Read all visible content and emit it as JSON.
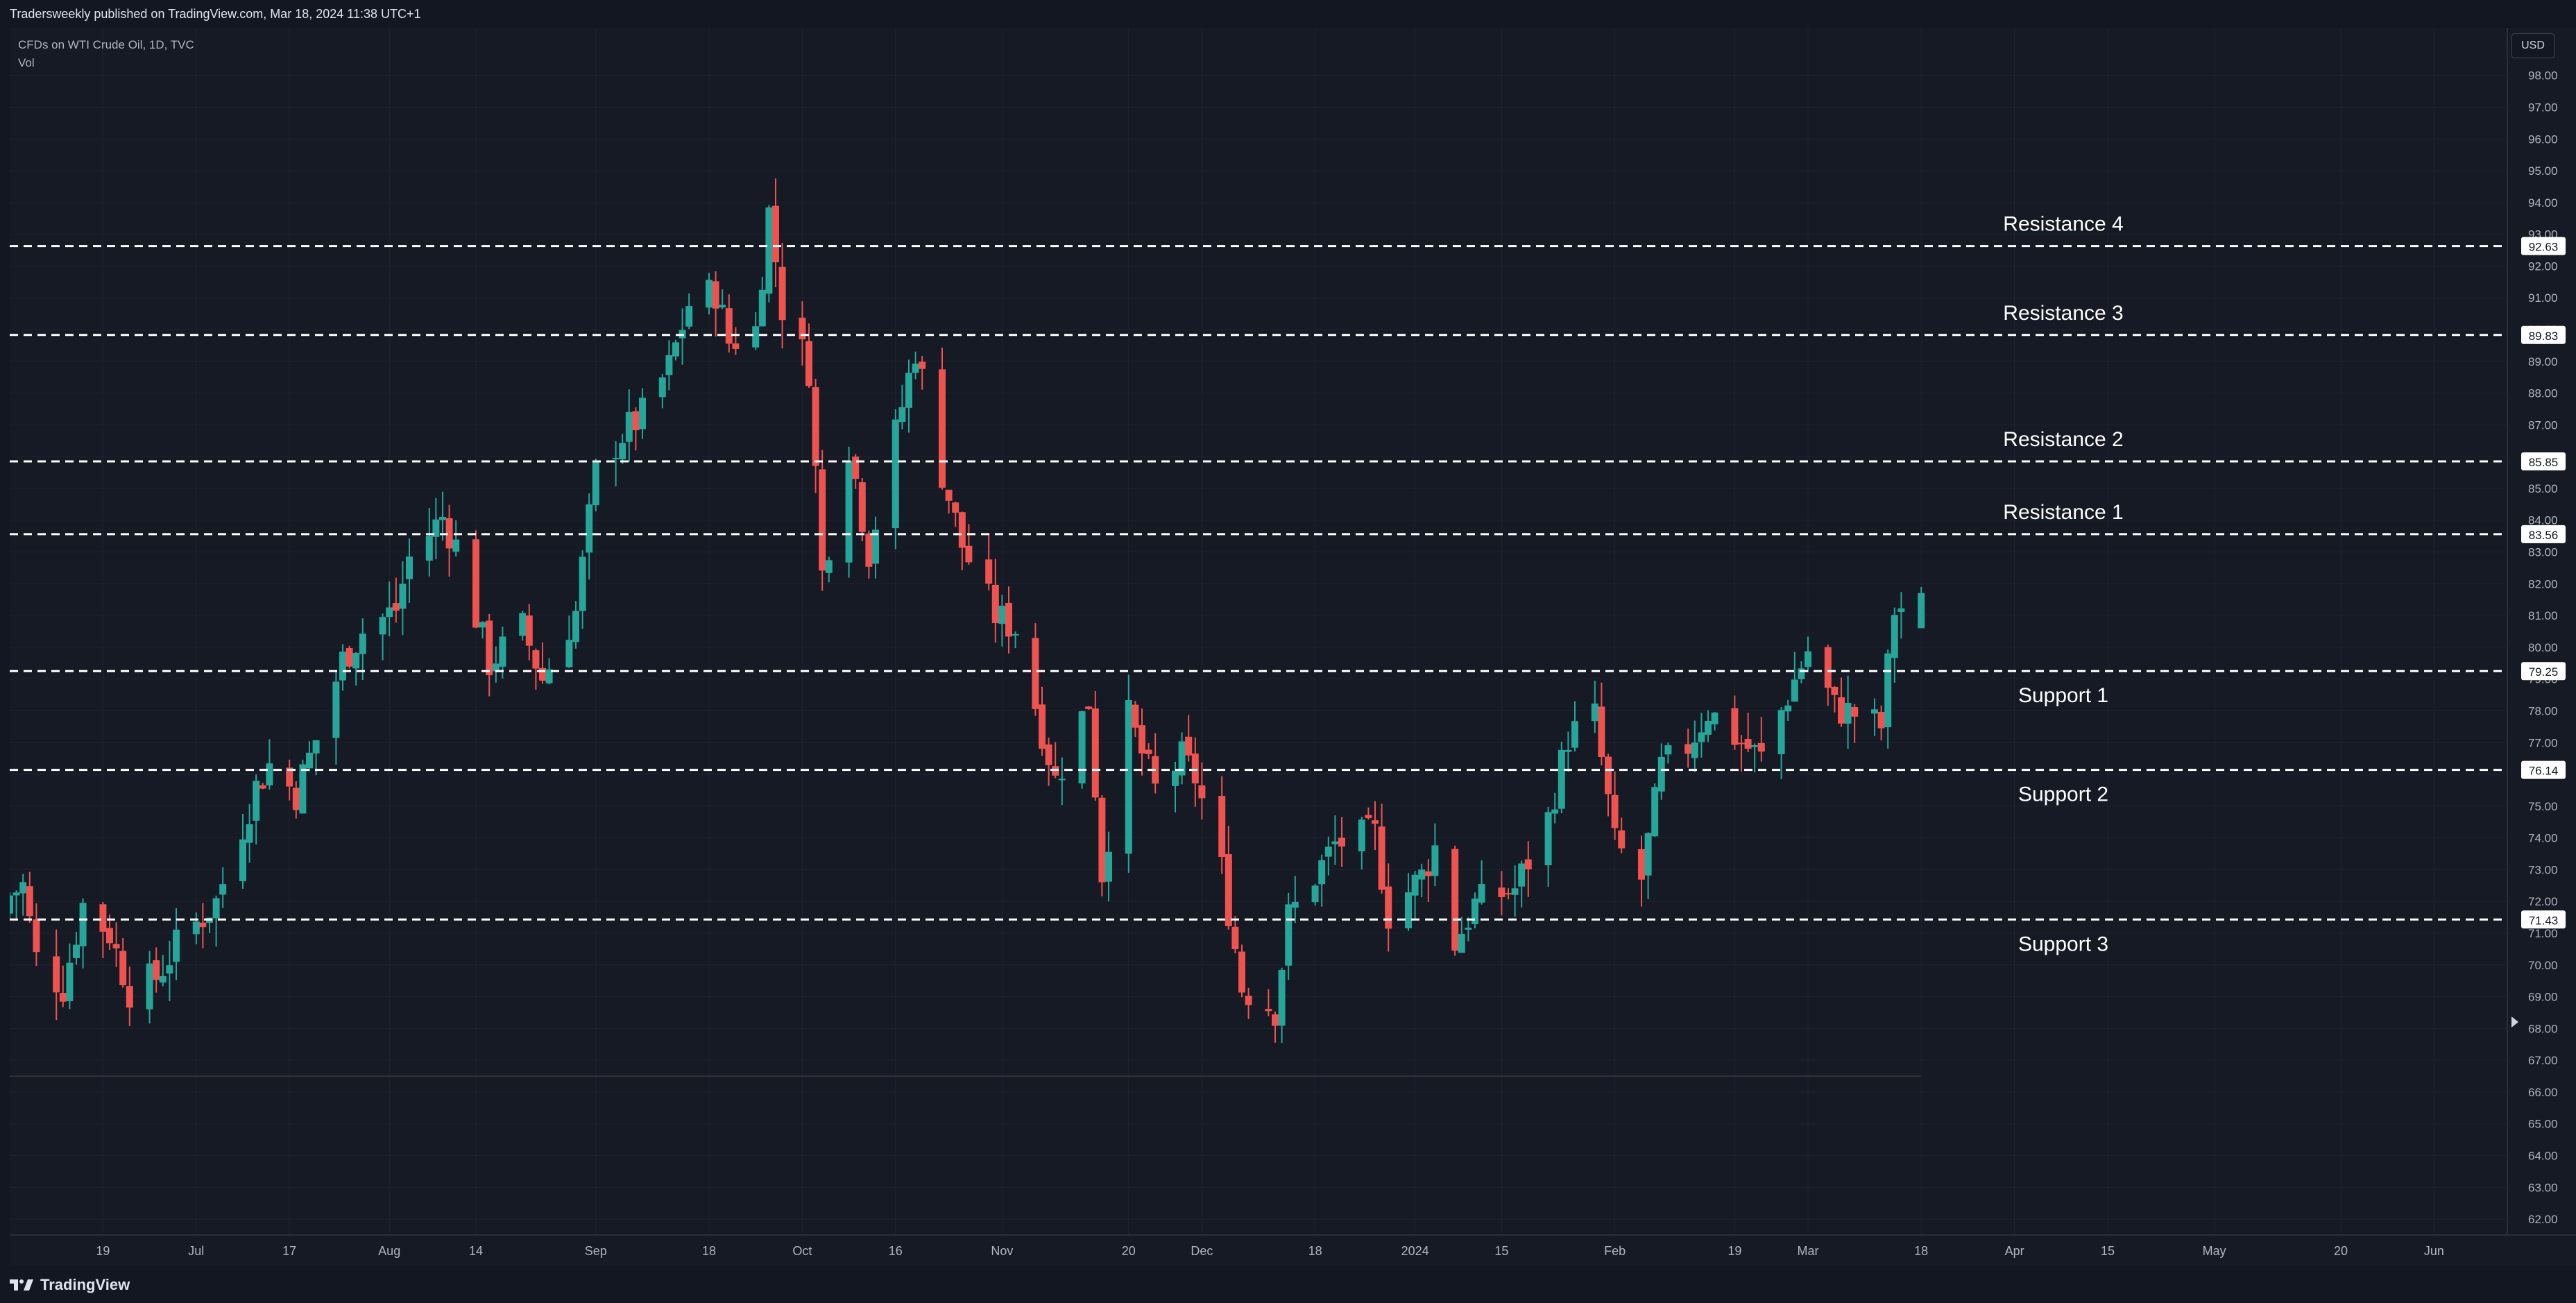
{
  "header": {
    "published": "Tradersweekly published on TradingView.com, Mar 18, 2024 11:38 UTC+1"
  },
  "legend": {
    "symbol": "CFDs on WTI Crude Oil, 1D, TVC",
    "indicator": "Vol"
  },
  "currency_button": "USD",
  "footer": {
    "brand": "TradingView"
  },
  "colors": {
    "background": "#161a25",
    "up": "#26a69a",
    "down": "#ef5350",
    "grid": "#1f2330",
    "level_line": "#ffffff",
    "axis_text": "#b2b5be"
  },
  "chart_data": {
    "type": "candlestick",
    "ylim": [
      61.5,
      99.5
    ],
    "y_ticks": [
      62,
      63,
      64,
      65,
      66,
      67,
      68,
      69,
      70,
      71,
      72,
      73,
      74,
      75,
      76,
      77,
      78,
      79,
      80,
      81,
      82,
      83,
      84,
      85,
      86,
      87,
      88,
      89,
      90,
      91,
      92,
      93,
      94,
      95,
      96,
      97,
      98
    ],
    "x_ticks": [
      {
        "label": "19",
        "date": "2023-06-19"
      },
      {
        "label": "Jul",
        "date": "2023-07-03"
      },
      {
        "label": "17",
        "date": "2023-07-17"
      },
      {
        "label": "Aug",
        "date": "2023-08-01"
      },
      {
        "label": "14",
        "date": "2023-08-14"
      },
      {
        "label": "Sep",
        "date": "2023-09-01"
      },
      {
        "label": "18",
        "date": "2023-09-18"
      },
      {
        "label": "Oct",
        "date": "2023-10-02"
      },
      {
        "label": "16",
        "date": "2023-10-16"
      },
      {
        "label": "Nov",
        "date": "2023-11-01"
      },
      {
        "label": "20",
        "date": "2023-11-20"
      },
      {
        "label": "Dec",
        "date": "2023-12-01"
      },
      {
        "label": "18",
        "date": "2023-12-18"
      },
      {
        "label": "2024",
        "date": "2024-01-02"
      },
      {
        "label": "15",
        "date": "2024-01-15"
      },
      {
        "label": "Feb",
        "date": "2024-02-01"
      },
      {
        "label": "19",
        "date": "2024-02-19"
      },
      {
        "label": "Mar",
        "date": "2024-03-01"
      },
      {
        "label": "18",
        "date": "2024-03-18"
      },
      {
        "label": "Apr",
        "date": "2024-04-01"
      },
      {
        "label": "15",
        "date": "2024-04-15"
      },
      {
        "label": "May",
        "date": "2024-05-01"
      },
      {
        "label": "20",
        "date": "2024-05-20"
      },
      {
        "label": "Jun",
        "date": "2024-06-03"
      }
    ],
    "date_range": [
      "2023-06-05",
      "2024-06-14"
    ],
    "levels": [
      {
        "label": "Resistance 4",
        "value": 92.63,
        "tag": "92.63"
      },
      {
        "label": "Resistance 3",
        "value": 89.83,
        "tag": "89.83"
      },
      {
        "label": "Resistance 2",
        "value": 85.85,
        "tag": "85.85"
      },
      {
        "label": "Resistance 1",
        "value": 83.56,
        "tag": "83.56"
      },
      {
        "label": "Support 1",
        "value": 79.25,
        "tag": "79.25"
      },
      {
        "label": "Support 2",
        "value": 76.14,
        "tag": "76.14"
      },
      {
        "label": "Support 3",
        "value": 71.43,
        "tag": "71.43"
      }
    ],
    "close_path": [
      {
        "date": "2023-06-05",
        "close": 72.2
      },
      {
        "date": "2023-06-07",
        "close": 72.5
      },
      {
        "date": "2023-06-09",
        "close": 70.2
      },
      {
        "date": "2023-06-13",
        "close": 69.3
      },
      {
        "date": "2023-06-16",
        "close": 71.9
      },
      {
        "date": "2023-06-20",
        "close": 71.0
      },
      {
        "date": "2023-06-23",
        "close": 69.2
      },
      {
        "date": "2023-06-27",
        "close": 69.6
      },
      {
        "date": "2023-06-30",
        "close": 70.6
      },
      {
        "date": "2023-07-06",
        "close": 72.0
      },
      {
        "date": "2023-07-12",
        "close": 75.6
      },
      {
        "date": "2023-07-14",
        "close": 76.3
      },
      {
        "date": "2023-07-18",
        "close": 75.4
      },
      {
        "date": "2023-07-21",
        "close": 77.1
      },
      {
        "date": "2023-07-25",
        "close": 79.6
      },
      {
        "date": "2023-07-28",
        "close": 80.5
      },
      {
        "date": "2023-08-02",
        "close": 81.2
      },
      {
        "date": "2023-08-04",
        "close": 82.8
      },
      {
        "date": "2023-08-09",
        "close": 84.1
      },
      {
        "date": "2023-08-11",
        "close": 83.2
      },
      {
        "date": "2023-08-16",
        "close": 79.5
      },
      {
        "date": "2023-08-21",
        "close": 80.6
      },
      {
        "date": "2023-08-24",
        "close": 79.0
      },
      {
        "date": "2023-08-29",
        "close": 81.1
      },
      {
        "date": "2023-09-01",
        "close": 85.5
      },
      {
        "date": "2023-09-05",
        "close": 86.7
      },
      {
        "date": "2023-09-08",
        "close": 87.3
      },
      {
        "date": "2023-09-12",
        "close": 88.8
      },
      {
        "date": "2023-09-15",
        "close": 90.8
      },
      {
        "date": "2023-09-19",
        "close": 91.2
      },
      {
        "date": "2023-09-21",
        "close": 89.6
      },
      {
        "date": "2023-09-25",
        "close": 90.0
      },
      {
        "date": "2023-09-27",
        "close": 93.7
      },
      {
        "date": "2023-09-29",
        "close": 90.7
      },
      {
        "date": "2023-10-03",
        "close": 88.8
      },
      {
        "date": "2023-10-05",
        "close": 82.3
      },
      {
        "date": "2023-10-09",
        "close": 86.4
      },
      {
        "date": "2023-10-12",
        "close": 83.0
      },
      {
        "date": "2023-10-16",
        "close": 86.7
      },
      {
        "date": "2023-10-19",
        "close": 89.4
      },
      {
        "date": "2023-10-23",
        "close": 85.5
      },
      {
        "date": "2023-10-26",
        "close": 83.2
      },
      {
        "date": "2023-10-31",
        "close": 81.0
      },
      {
        "date": "2023-11-03",
        "close": 80.6
      },
      {
        "date": "2023-11-07",
        "close": 77.4
      },
      {
        "date": "2023-11-09",
        "close": 75.8
      },
      {
        "date": "2023-11-14",
        "close": 78.3
      },
      {
        "date": "2023-11-16",
        "close": 72.9
      },
      {
        "date": "2023-11-20",
        "close": 77.8
      },
      {
        "date": "2023-11-24",
        "close": 75.5
      },
      {
        "date": "2023-11-28",
        "close": 76.5
      },
      {
        "date": "2023-11-30",
        "close": 75.9
      },
      {
        "date": "2023-12-04",
        "close": 73.0
      },
      {
        "date": "2023-12-07",
        "close": 69.3
      },
      {
        "date": "2023-12-12",
        "close": 68.6
      },
      {
        "date": "2023-12-14",
        "close": 71.5
      },
      {
        "date": "2023-12-18",
        "close": 72.8
      },
      {
        "date": "2023-12-21",
        "close": 73.8
      },
      {
        "date": "2023-12-27",
        "close": 74.1
      },
      {
        "date": "2023-12-29",
        "close": 71.6
      },
      {
        "date": "2024-01-03",
        "close": 72.8
      },
      {
        "date": "2024-01-05",
        "close": 73.7
      },
      {
        "date": "2024-01-08",
        "close": 70.7
      },
      {
        "date": "2024-01-11",
        "close": 71.9
      },
      {
        "date": "2024-01-17",
        "close": 72.4
      },
      {
        "date": "2024-01-22",
        "close": 74.6
      },
      {
        "date": "2024-01-25",
        "close": 77.2
      },
      {
        "date": "2024-01-29",
        "close": 77.8
      },
      {
        "date": "2024-02-01",
        "close": 73.8
      },
      {
        "date": "2024-02-05",
        "close": 72.7
      },
      {
        "date": "2024-02-08",
        "close": 76.2
      },
      {
        "date": "2024-02-12",
        "close": 76.9
      },
      {
        "date": "2024-02-15",
        "close": 78.0
      },
      {
        "date": "2024-02-20",
        "close": 77.0
      },
      {
        "date": "2024-02-23",
        "close": 76.5
      },
      {
        "date": "2024-02-27",
        "close": 78.5
      },
      {
        "date": "2024-03-01",
        "close": 79.9
      },
      {
        "date": "2024-03-05",
        "close": 78.1
      },
      {
        "date": "2024-03-08",
        "close": 77.9
      },
      {
        "date": "2024-03-12",
        "close": 77.5
      },
      {
        "date": "2024-03-14",
        "close": 81.2
      },
      {
        "date": "2024-03-18",
        "close": 81.4
      }
    ]
  }
}
